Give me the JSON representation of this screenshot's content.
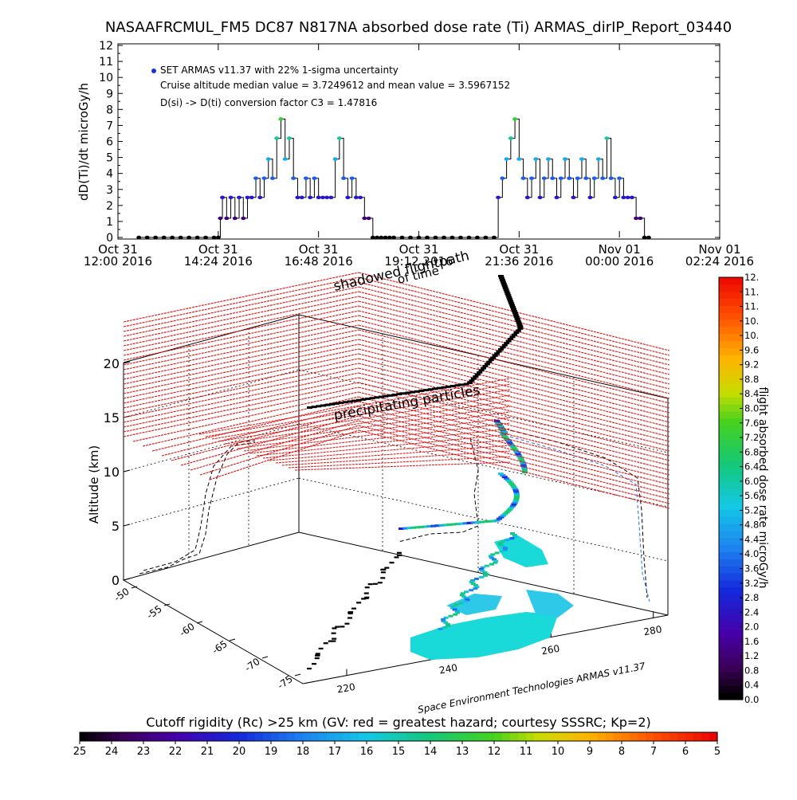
{
  "chart_data": [
    {
      "type": "line",
      "title": "NASAAFRCMUL_FM5 DC87 N817NA absorbed dose rate (Ti) ARMAS_dirIP_Report_03440",
      "ylabel": "dD(Ti)/dt microGy/h",
      "ylim": [
        0,
        12
      ],
      "yticks": [
        "0",
        "1",
        "2",
        "3",
        "4",
        "5",
        "6",
        "7",
        "8",
        "9",
        "10",
        "11",
        "12"
      ],
      "xticks": [
        {
          "l1": "Oct 31",
          "l2": "12:00 2016"
        },
        {
          "l1": "Oct 31",
          "l2": "14:24 2016"
        },
        {
          "l1": "Oct 31",
          "l2": "16:48 2016"
        },
        {
          "l1": "Oct 31",
          "l2": "19:12 2016"
        },
        {
          "l1": "Oct 31",
          "l2": "21:36 2016"
        },
        {
          "l1": "Nov 01",
          "l2": "00:00 2016"
        },
        {
          "l1": "Nov 01",
          "l2": "02:24 2016"
        }
      ],
      "xlim_hours": [
        12.0,
        26.4
      ],
      "legend": [
        "SET ARMAS v11.37 with 22% 1-sigma uncertainty",
        "Cruise altitude median value = 3.7249612 and mean value = 3.5967152",
        "D(si) -> D(ti) conversion factor C3 = 1.47816"
      ],
      "series": [
        {
          "x": [
            12.5,
            12.7,
            12.9,
            13.1,
            13.3,
            13.5,
            13.7,
            13.9,
            14.1,
            14.3,
            14.4,
            14.45,
            14.5,
            14.6,
            14.7,
            14.8,
            14.9,
            15.0,
            15.1,
            15.2,
            15.3,
            15.4,
            15.5,
            15.6,
            15.7,
            15.8,
            15.9,
            16.0,
            16.1,
            16.2,
            16.3,
            16.4,
            16.5,
            16.6,
            16.7,
            16.8,
            16.9,
            17.0,
            17.1,
            17.2,
            17.3,
            17.4,
            17.5,
            17.6,
            17.7,
            17.8,
            17.9,
            18.0,
            18.1,
            18.2,
            18.3,
            18.4,
            18.5,
            18.6,
            18.8,
            19.0,
            19.2,
            19.4,
            19.6,
            19.8,
            20.0,
            20.2,
            20.4,
            20.6,
            20.8,
            21.0,
            21.1,
            21.2,
            21.3,
            21.4,
            21.5,
            21.6,
            21.7,
            21.8,
            21.9,
            22.0,
            22.1,
            22.2,
            22.3,
            22.4,
            22.5,
            22.6,
            22.7,
            22.8,
            22.9,
            23.0,
            23.1,
            23.2,
            23.3,
            23.4,
            23.5,
            23.6,
            23.7,
            23.8,
            23.9,
            24.0,
            24.1,
            24.2,
            24.3,
            24.4,
            24.5,
            24.6,
            24.7
          ],
          "y": [
            0,
            0,
            0,
            0,
            0,
            0,
            0,
            0,
            0,
            0,
            0,
            1.2,
            2.5,
            1.2,
            2.5,
            1.2,
            2.5,
            1.2,
            2.5,
            2.5,
            3.7,
            2.5,
            3.7,
            4.9,
            3.7,
            6.2,
            7.4,
            4.9,
            6.2,
            3.7,
            2.5,
            2.5,
            3.7,
            2.5,
            3.7,
            2.5,
            2.5,
            2.5,
            2.5,
            4.9,
            6.2,
            3.7,
            2.5,
            3.7,
            2.5,
            2.5,
            1.2,
            1.2,
            0,
            0,
            0,
            0,
            0,
            0,
            0,
            0,
            0,
            0,
            0,
            0,
            0,
            0,
            0,
            0,
            0,
            0,
            2.5,
            3.7,
            4.9,
            6.2,
            7.4,
            4.9,
            3.7,
            2.5,
            3.7,
            4.9,
            2.5,
            3.7,
            4.9,
            3.7,
            2.5,
            3.7,
            4.9,
            3.7,
            2.5,
            3.7,
            4.9,
            3.7,
            2.5,
            3.7,
            4.9,
            3.7,
            6.2,
            3.7,
            2.5,
            3.7,
            2.5,
            2.5,
            2.5,
            1.2,
            1.2,
            0,
            0
          ]
        }
      ]
    },
    {
      "type": "scatter",
      "title": "",
      "zlabel": "Altitude (km)",
      "zticks": [
        "0",
        "5",
        "10",
        "15",
        "20"
      ],
      "lat_ticks": [
        "-50",
        "-55",
        "-60",
        "-65",
        "-70",
        "-75"
      ],
      "lon_ticks": [
        "220",
        "240",
        "260",
        "280"
      ],
      "colorbar": {
        "label": "flight absorbed dose rate microGy/h",
        "ticks": [
          "0.0",
          "0.4",
          "0.8",
          "1.2",
          "1.6",
          "2.0",
          "2.4",
          "2.8",
          "3.2",
          "3.6",
          "4.0",
          "4.4",
          "4.8",
          "5.2",
          "5.6",
          "6.0",
          "6.4",
          "6.8",
          "7.2",
          "7.6",
          "8.0",
          "8.4",
          "8.8",
          "9.2",
          "9.6",
          "10.",
          "10.",
          "11.",
          "11.",
          "12."
        ]
      },
      "annotations": [
        "shadowed flightpath",
        "of time",
        "precipitating particles"
      ],
      "credit": "Space Environment Technologies ARMAS v11.37"
    },
    {
      "type": "heatmap",
      "title": "Cutoff rigidity (Rc) >25 km (GV: red = greatest hazard; courtesy SSSRC; Kp=2)",
      "ticks": [
        "25",
        "24",
        "23",
        "22",
        "21",
        "20",
        "19",
        "18",
        "17",
        "16",
        "15",
        "14",
        "13",
        "12",
        "11",
        "10",
        "9",
        "8",
        "7",
        "6",
        "5"
      ]
    }
  ]
}
